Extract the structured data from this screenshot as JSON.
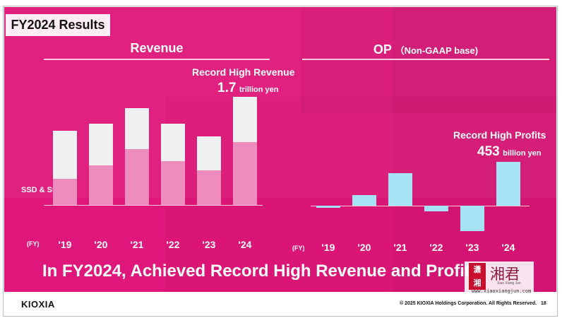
{
  "slide": {
    "title": "FY2024 Results",
    "tagline": "In FY2024, Achieved Record High Revenue and Profits",
    "logo_text": "KIOXIA",
    "copyright": "© 2025 KIOXIA Holdings Corporation. All Rights Reserved.",
    "page_number": "18",
    "colors": {
      "background": "#e0177a",
      "revenue_total": "#f0f0f0",
      "revenue_ssd": "#ee8dbd",
      "op": "#a6e3f4"
    }
  },
  "watermark": {
    "chars": "湘君",
    "seal_chars": "潇湘",
    "pinyin": "Xiao Xiang Jun",
    "url": "www.xiaoxiangjun.com"
  },
  "chart_data": [
    {
      "type": "bar",
      "title": "Revenue",
      "annotation": {
        "label": "Record High Revenue",
        "value": "1.7",
        "unit": "trillion yen"
      },
      "fy_label": "(FY)",
      "categories": [
        "'19",
        "'20",
        "'21",
        "'22",
        "'23",
        "'24"
      ],
      "series": [
        {
          "name": "SSD & Storage",
          "values": [
            0.41,
            0.63,
            0.88,
            0.69,
            0.55,
            1.0
          ]
        },
        {
          "name": "",
          "values": [
            1.17,
            1.28,
            1.53,
            1.28,
            1.08,
            1.71
          ]
        }
      ],
      "ylim": [
        0,
        1.75
      ]
    },
    {
      "type": "bar",
      "title": "OP",
      "subtitle": "（Non-GAAP base)",
      "annotation": {
        "label": "Record High Profits",
        "value": "453",
        "unit": "billion yen"
      },
      "fy_label": "(FY)",
      "categories": [
        "'19",
        "'20",
        "'21",
        "'22",
        "'23",
        "'24"
      ],
      "values": [
        -23,
        112,
        336,
        -58,
        -265,
        453
      ]
    }
  ]
}
